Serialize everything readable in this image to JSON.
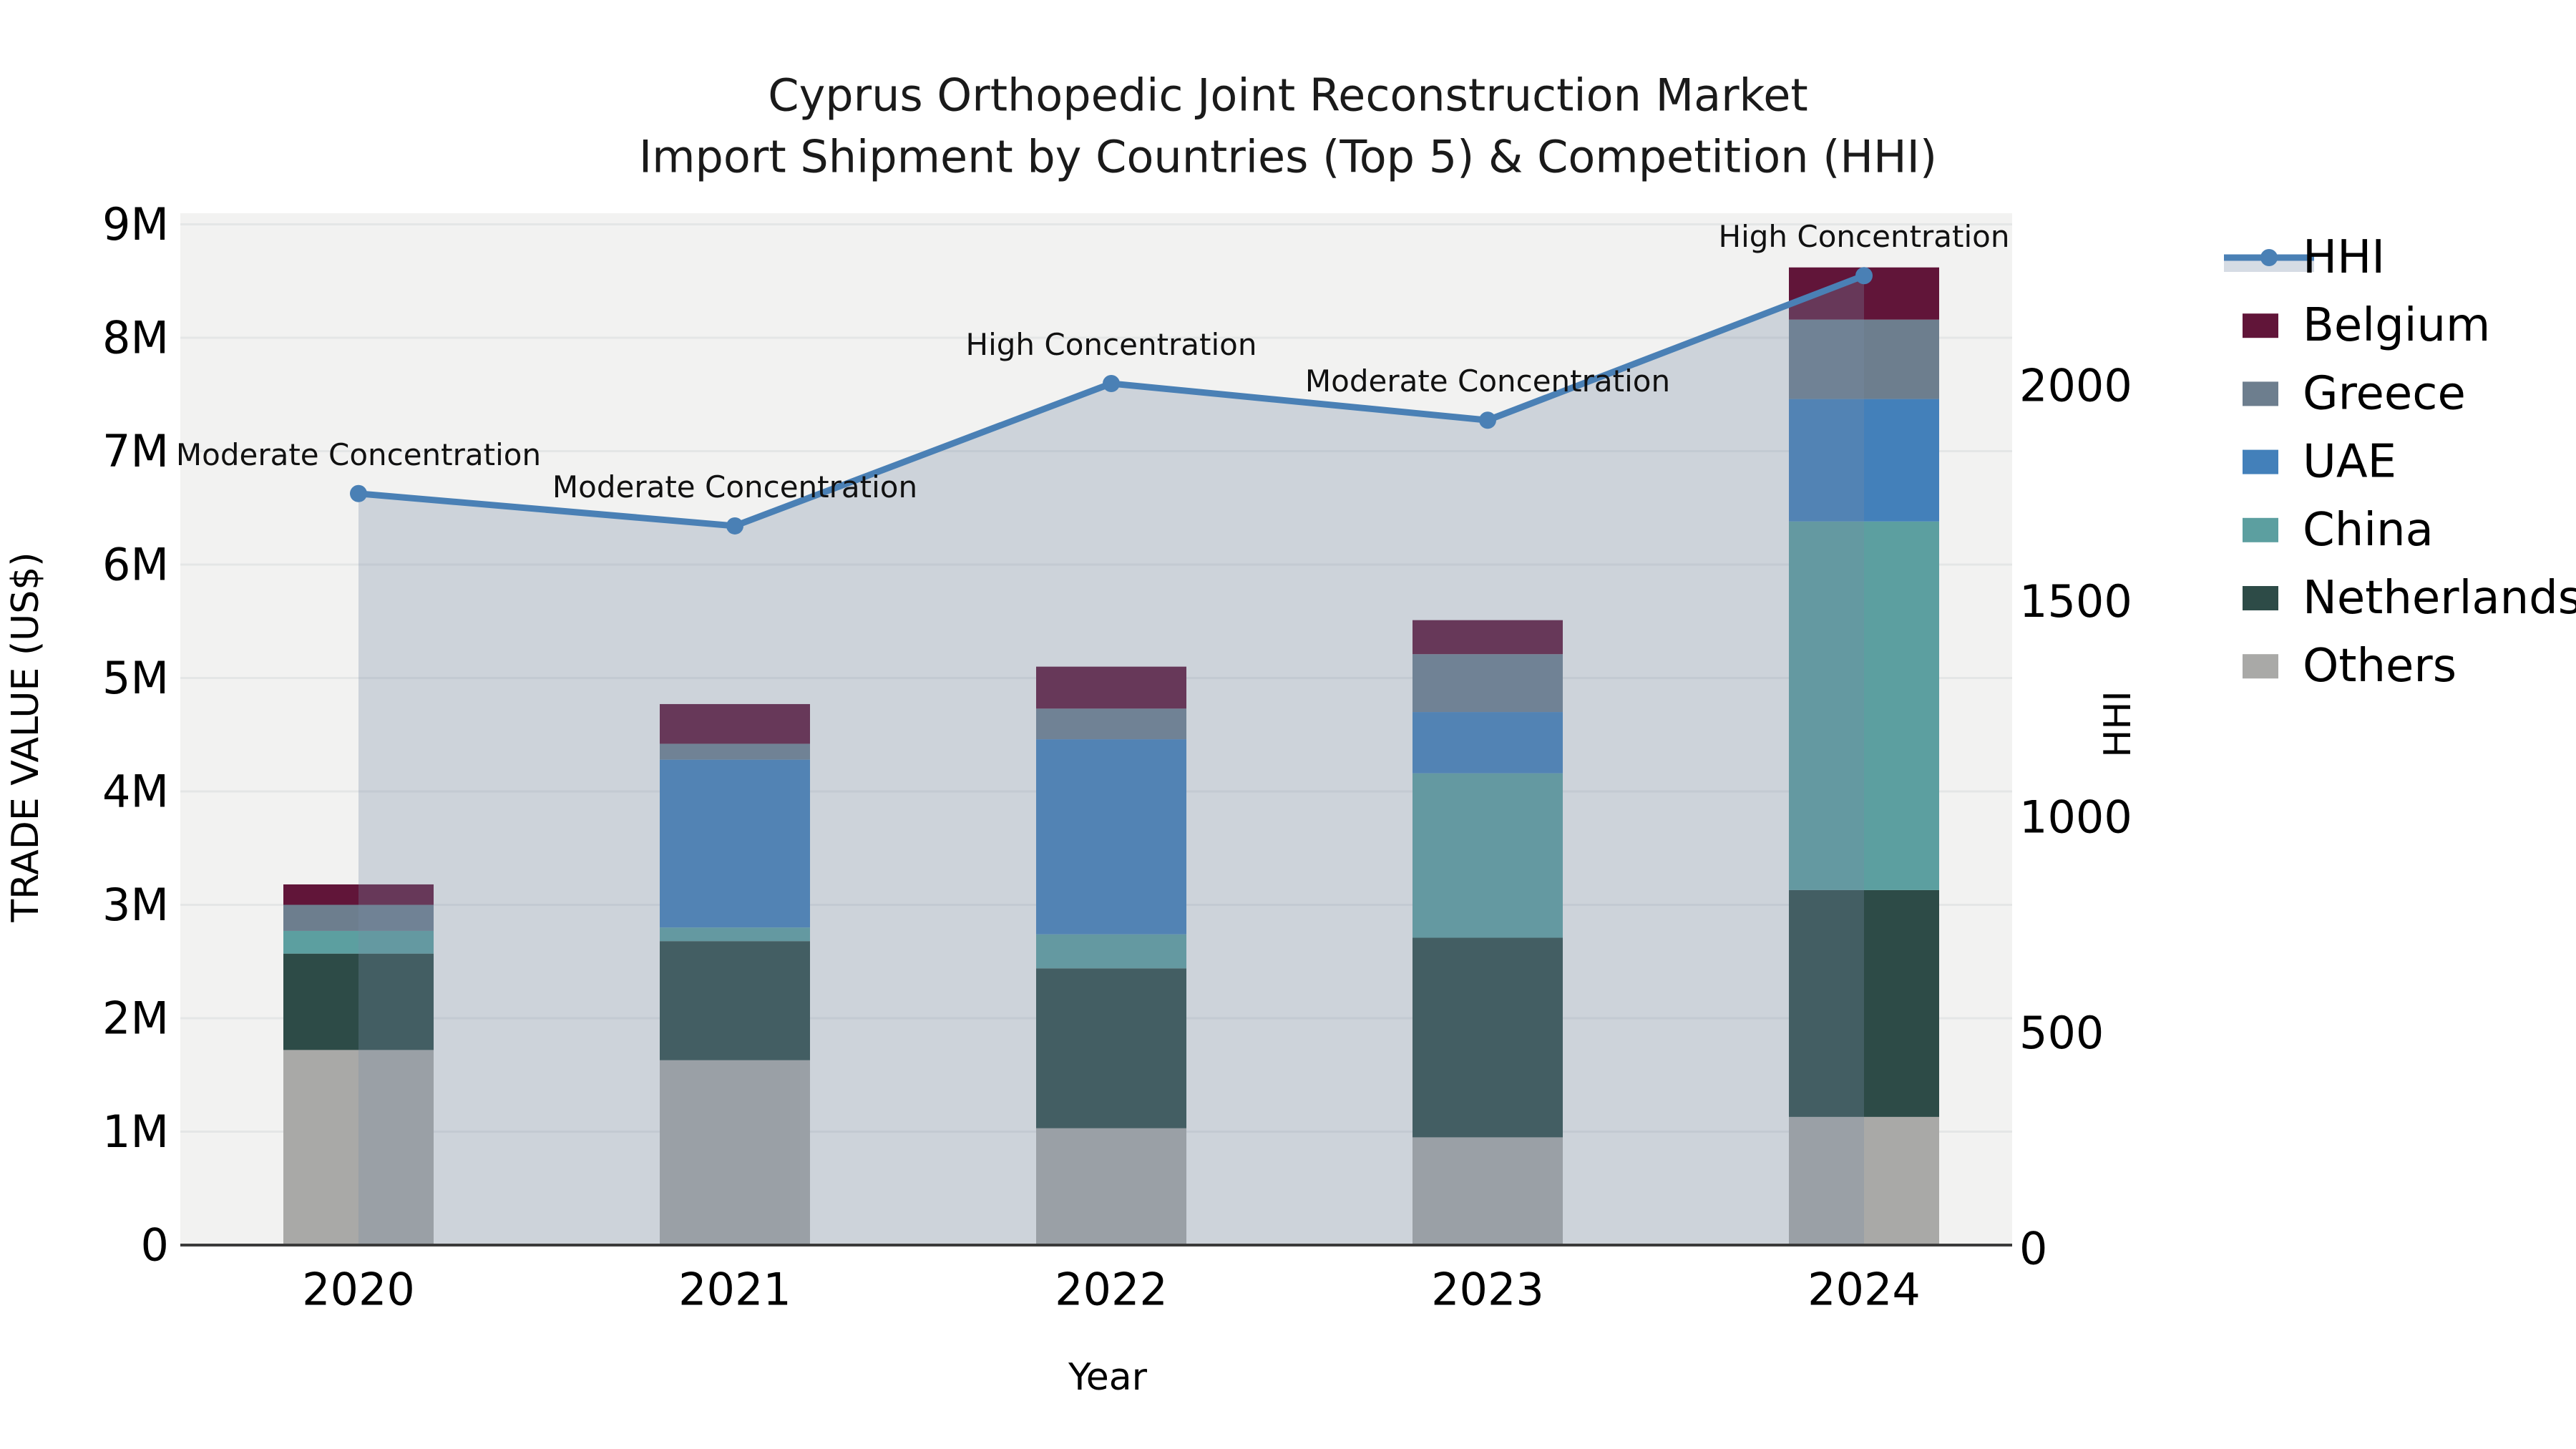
{
  "title": {
    "line1": "Cyprus Orthopedic Joint Reconstruction Market",
    "line2": "Import Shipment by Countries (Top 5) & Competition (HHI)"
  },
  "axes": {
    "left": {
      "label": "TRADE VALUE (US$)",
      "ticks": [
        "0",
        "1M",
        "2M",
        "3M",
        "4M",
        "5M",
        "6M",
        "7M",
        "8M",
        "9M"
      ]
    },
    "right": {
      "label": "HHI",
      "ticks": [
        "0",
        "500",
        "1000",
        "1500",
        "2000"
      ]
    },
    "x": {
      "label": "Year"
    }
  },
  "legend": {
    "items": [
      {
        "label": "HHI",
        "type": "line",
        "color": "#4a80b5",
        "band_color": "#d6dce4"
      },
      {
        "label": "Belgium",
        "type": "patch",
        "color": "#611539"
      },
      {
        "label": "Greece",
        "type": "patch",
        "color": "#6d7e8e"
      },
      {
        "label": "UAE",
        "type": "patch",
        "color": "#4380ba"
      },
      {
        "label": "China",
        "type": "patch",
        "color": "#5c9fa0"
      },
      {
        "label": "Netherlands",
        "type": "patch",
        "color": "#2d4b47"
      },
      {
        "label": "Others",
        "type": "patch",
        "color": "#a9a9a7"
      }
    ]
  },
  "chart_data": {
    "type": "bar",
    "subtype": "stacked-bars-with-line-area-overlay",
    "title": "Cyprus Orthopedic Joint Reconstruction Market\nImport Shipment by Countries (Top 5) & Competition (HHI)",
    "xlabel": "Year",
    "ylabel_left": "TRADE VALUE (US$)",
    "ylabel_right": "HHI",
    "categories": [
      "2020",
      "2021",
      "2022",
      "2023",
      "2024"
    ],
    "stack_order_bottom_to_top": [
      "Others",
      "Netherlands",
      "China",
      "UAE",
      "Greece",
      "Belgium"
    ],
    "series": [
      {
        "name": "Belgium",
        "color": "#611539",
        "values_musd": [
          0.18,
          0.35,
          0.37,
          0.3,
          0.46
        ]
      },
      {
        "name": "Greece",
        "color": "#6d7e8e",
        "values_musd": [
          0.23,
          0.14,
          0.27,
          0.51,
          0.7
        ]
      },
      {
        "name": "UAE",
        "color": "#4380ba",
        "values_musd": [
          0.0,
          1.48,
          1.72,
          0.54,
          1.08
        ]
      },
      {
        "name": "China",
        "color": "#5c9fa0",
        "values_musd": [
          0.2,
          0.12,
          0.3,
          1.45,
          3.25
        ]
      },
      {
        "name": "Netherlands",
        "color": "#2d4b47",
        "values_musd": [
          0.85,
          1.05,
          1.41,
          1.76,
          2.0
        ]
      },
      {
        "name": "Others",
        "color": "#a9a9a7",
        "values_musd": [
          1.72,
          1.63,
          1.03,
          0.95,
          1.13
        ]
      }
    ],
    "totals_musd": [
      3.18,
      4.77,
      5.1,
      5.51,
      8.62
    ],
    "line": {
      "name": "HHI",
      "color": "#4a80b5",
      "area_color": "rgba(119,139,165,0.30)",
      "values": [
        1750,
        1675,
        2005,
        1920,
        2255
      ],
      "annotations": [
        "Moderate Concentration",
        "Moderate Concentration",
        "High Concentration",
        "Moderate Concentration",
        "High Concentration"
      ]
    },
    "ylim_left_musd": [
      0,
      9.1
    ],
    "ylim_right_hhi": [
      0,
      2300
    ],
    "grid": "horizontal",
    "legend_position": "right-outside",
    "plot_background": "#f2f2f1",
    "gridline_color": "#e4e6e6"
  }
}
